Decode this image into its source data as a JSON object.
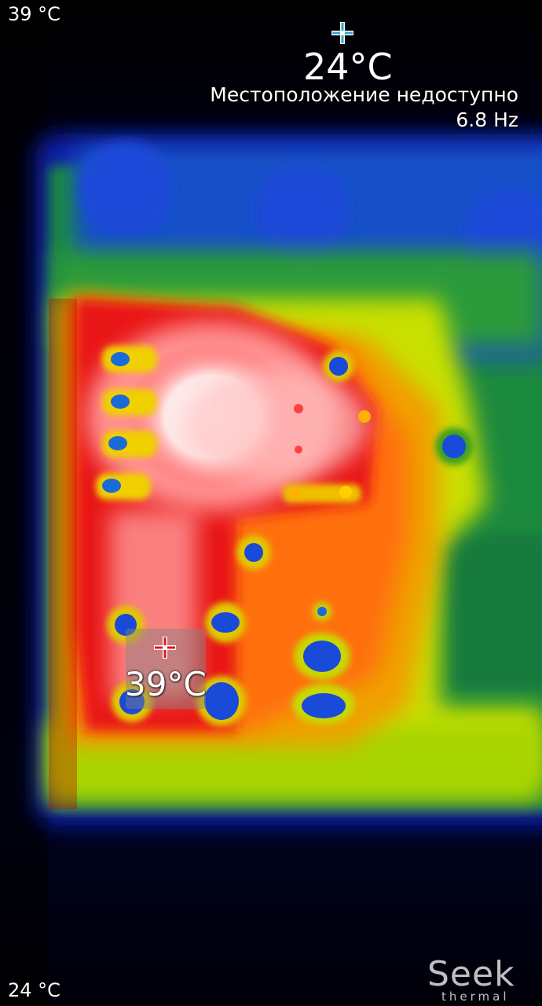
{
  "scale": {
    "max_label": "39 °C",
    "min_label": "24 °C"
  },
  "cold_spot": {
    "temperature": "24°C",
    "icon": "crosshair-icon"
  },
  "status": {
    "location": "Местоположение недоступно",
    "frame_rate": "6.8 Hz"
  },
  "hot_spot": {
    "temperature": "39°C",
    "icon": "crosshair-icon"
  },
  "brand": {
    "name": "Seek",
    "tagline": "thermal"
  },
  "palette": {
    "cold": "#0a1aa8",
    "cool": "#1e7a3a",
    "warm": "#e8e800",
    "hot": "#e81010",
    "hottest": "#ffffff",
    "crosshair": "#2aa8c8"
  }
}
